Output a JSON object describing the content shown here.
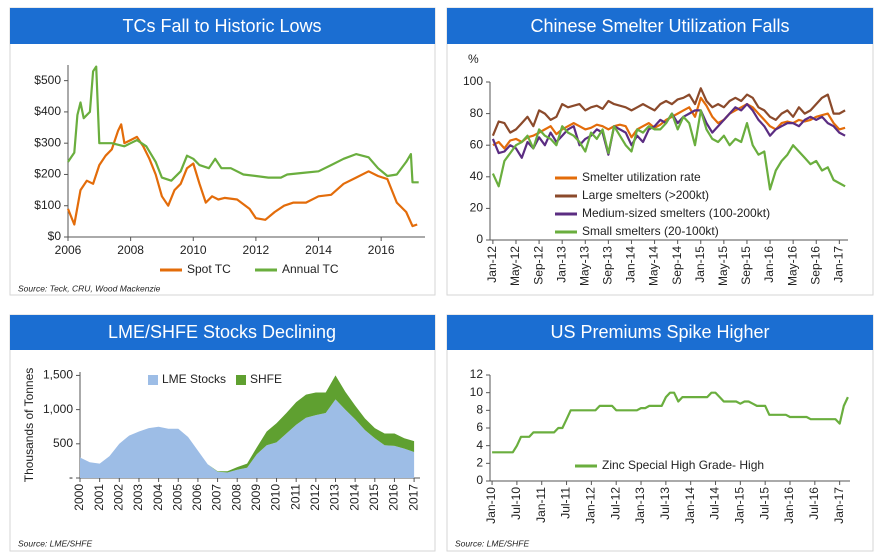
{
  "chart_data": [
    {
      "type": "line",
      "title": "TCs Fall to Historic Lows",
      "source": "Source: Teck, CRU, Wood Mackenzie",
      "xlim": [
        2006,
        2017.4
      ],
      "xticks": [
        2006,
        2008,
        2010,
        2012,
        2014,
        2016
      ],
      "ylim": [
        0,
        550
      ],
      "yticks": [
        {
          "value": 0,
          "label": "$0"
        },
        {
          "value": 100,
          "label": "$100"
        },
        {
          "value": 200,
          "label": "$200"
        },
        {
          "value": 300,
          "label": "$300"
        },
        {
          "value": 400,
          "label": "$400"
        },
        {
          "value": 500,
          "label": "$500"
        }
      ],
      "series": [
        {
          "name": "Spot TC",
          "color": "#e36c0a",
          "x": [
            2006.0,
            2006.2,
            2006.4,
            2006.6,
            2006.8,
            2007.0,
            2007.2,
            2007.4,
            2007.6,
            2007.7,
            2007.8,
            2008.0,
            2008.2,
            2008.4,
            2008.6,
            2008.8,
            2009.0,
            2009.2,
            2009.4,
            2009.6,
            2009.8,
            2010.0,
            2010.2,
            2010.4,
            2010.6,
            2010.8,
            2011.0,
            2011.4,
            2011.8,
            2012.0,
            2012.3,
            2012.6,
            2012.9,
            2013.2,
            2013.6,
            2014.0,
            2014.4,
            2014.8,
            2015.2,
            2015.6,
            2015.9,
            2016.2,
            2016.5,
            2016.8,
            2017.0,
            2017.15
          ],
          "values": [
            90,
            40,
            150,
            180,
            170,
            230,
            260,
            280,
            340,
            360,
            300,
            310,
            320,
            290,
            250,
            200,
            130,
            100,
            150,
            170,
            220,
            235,
            170,
            110,
            130,
            120,
            125,
            120,
            90,
            60,
            55,
            80,
            100,
            110,
            110,
            130,
            135,
            170,
            190,
            210,
            195,
            185,
            110,
            80,
            35,
            40
          ]
        },
        {
          "name": "Annual TC",
          "color": "#6aae3e",
          "x": [
            2006.0,
            2006.2,
            2006.3,
            2006.4,
            2006.5,
            2006.7,
            2006.8,
            2006.9,
            2007.0,
            2007.4,
            2007.8,
            2008.0,
            2008.2,
            2008.5,
            2008.8,
            2009.0,
            2009.3,
            2009.6,
            2009.8,
            2010.0,
            2010.2,
            2010.5,
            2010.7,
            2010.9,
            2011.2,
            2011.6,
            2012.0,
            2012.4,
            2012.8,
            2013.0,
            2013.5,
            2014.0,
            2014.4,
            2014.8,
            2015.2,
            2015.6,
            2015.9,
            2016.2,
            2016.5,
            2016.8,
            2016.95,
            2017.0,
            2017.2
          ],
          "values": [
            240,
            270,
            390,
            430,
            380,
            400,
            530,
            545,
            300,
            300,
            290,
            300,
            310,
            290,
            240,
            190,
            180,
            210,
            260,
            250,
            230,
            220,
            250,
            220,
            220,
            200,
            195,
            190,
            190,
            200,
            205,
            210,
            230,
            250,
            265,
            255,
            220,
            195,
            200,
            240,
            265,
            175,
            175
          ]
        }
      ]
    },
    {
      "type": "line",
      "title": "Chinese Smelter Utilization Falls",
      "y_label": "%",
      "categories": [
        "Jan-12",
        null,
        null,
        null,
        "May-12",
        null,
        null,
        null,
        "Sep-12",
        null,
        null,
        null,
        "Jan-13",
        null,
        null,
        null,
        "May-13",
        null,
        null,
        null,
        "Sep-13",
        null,
        null,
        null,
        "Jan-14",
        null,
        null,
        null,
        "May-14",
        null,
        null,
        null,
        "Sep-14",
        null,
        null,
        null,
        "Jan-15",
        null,
        null,
        null,
        "May-15",
        null,
        null,
        null,
        "Sep-15",
        null,
        null,
        null,
        "Jan-16",
        null,
        null,
        null,
        "May-16",
        null,
        null,
        null,
        "Sep-16",
        null,
        null,
        null,
        "Jan-17",
        null
      ],
      "ylim": [
        0,
        100
      ],
      "yticks": [
        0,
        20,
        40,
        60,
        80,
        100
      ],
      "series": [
        {
          "name": "Smelter utilization rate",
          "color": "#e36c0a",
          "values": [
            60,
            62,
            58,
            63,
            64,
            62,
            65,
            66,
            68,
            70,
            72,
            67,
            70,
            72,
            74,
            72,
            70,
            71,
            73,
            72,
            70,
            72,
            73,
            72,
            65,
            70,
            72,
            74,
            71,
            73,
            76,
            78,
            80,
            82,
            84,
            78,
            90,
            85,
            78,
            74,
            76,
            80,
            82,
            84,
            86,
            84,
            80,
            76,
            72,
            70,
            74,
            75,
            74,
            76,
            75,
            76,
            78,
            79,
            80,
            74,
            70,
            71
          ]
        },
        {
          "name": "Large smelters (>200kt)",
          "color": "#8b4a2b",
          "values": [
            66,
            75,
            74,
            68,
            70,
            74,
            78,
            72,
            82,
            80,
            76,
            78,
            86,
            84,
            85,
            86,
            82,
            84,
            85,
            83,
            88,
            86,
            85,
            84,
            82,
            84,
            86,
            84,
            82,
            86,
            88,
            86,
            89,
            90,
            92,
            86,
            96,
            88,
            84,
            86,
            84,
            88,
            90,
            88,
            92,
            90,
            84,
            82,
            78,
            76,
            80,
            82,
            78,
            84,
            80,
            82,
            86,
            90,
            92,
            80,
            80,
            82
          ]
        },
        {
          "name": "Medium-sized smelters (100-200kt)",
          "color": "#5b2d82",
          "values": [
            64,
            55,
            56,
            60,
            58,
            52,
            62,
            58,
            65,
            60,
            68,
            62,
            66,
            70,
            72,
            60,
            64,
            66,
            70,
            68,
            54,
            72,
            70,
            68,
            60,
            66,
            62,
            70,
            72,
            76,
            74,
            80,
            74,
            78,
            80,
            82,
            82,
            74,
            68,
            72,
            76,
            80,
            84,
            82,
            86,
            82,
            76,
            72,
            66,
            70,
            72,
            74,
            74,
            72,
            76,
            78,
            76,
            78,
            74,
            72,
            68,
            66
          ]
        },
        {
          "name": "Small smelters (20-100kt)",
          "color": "#6aae3e",
          "values": [
            42,
            34,
            50,
            55,
            60,
            62,
            66,
            58,
            70,
            66,
            64,
            60,
            72,
            68,
            66,
            62,
            56,
            68,
            64,
            70,
            55,
            72,
            66,
            60,
            56,
            70,
            68,
            72,
            70,
            70,
            74,
            80,
            70,
            78,
            74,
            60,
            82,
            70,
            64,
            62,
            66,
            60,
            64,
            62,
            74,
            60,
            54,
            56,
            32,
            44,
            50,
            54,
            60,
            56,
            52,
            48,
            50,
            44,
            46,
            38,
            36,
            34
          ]
        }
      ]
    },
    {
      "type": "area",
      "title": "LME/SHFE Stocks Declining",
      "source": "Source: LME/SHFE",
      "y_label": "Thousands of Tonnes",
      "x": [
        2000,
        2000.5,
        2001,
        2001.5,
        2002,
        2002.5,
        2003,
        2003.5,
        2004,
        2004.5,
        2005,
        2005.5,
        2006,
        2006.5,
        2007,
        2007.5,
        2008,
        2008.5,
        2009,
        2009.5,
        2010,
        2010.5,
        2011,
        2011.5,
        2012,
        2012.5,
        2013,
        2013.5,
        2014,
        2014.5,
        2015,
        2015.5,
        2016,
        2016.5,
        2017
      ],
      "xlim": [
        2000,
        2017.3
      ],
      "xticks": [
        2000,
        2001,
        2002,
        2003,
        2004,
        2005,
        2006,
        2007,
        2008,
        2009,
        2010,
        2011,
        2012,
        2013,
        2014,
        2015,
        2016,
        2017
      ],
      "ylim": [
        0,
        1550
      ],
      "yticks": [
        {
          "value": 0,
          "label": "-"
        },
        500,
        {
          "value": 1000,
          "label": "1,000"
        },
        {
          "value": 1500,
          "label": "1,500"
        }
      ],
      "series": [
        {
          "name": "LME Stocks",
          "color": "#9dbde6",
          "values": [
            300,
            230,
            210,
            320,
            500,
            620,
            680,
            730,
            750,
            720,
            720,
            600,
            400,
            200,
            90,
            80,
            120,
            150,
            350,
            480,
            520,
            650,
            780,
            880,
            920,
            950,
            1150,
            1000,
            860,
            700,
            580,
            480,
            470,
            430,
            380
          ]
        },
        {
          "name": "SHFE",
          "color": "#5fa030",
          "values": [
            0,
            0,
            0,
            0,
            0,
            0,
            0,
            0,
            0,
            0,
            0,
            0,
            0,
            0,
            10,
            20,
            40,
            60,
            100,
            200,
            280,
            300,
            330,
            340,
            330,
            300,
            350,
            260,
            200,
            170,
            150,
            170,
            180,
            150,
            160
          ]
        }
      ]
    },
    {
      "type": "line",
      "title": "US Premiums Spike Higher",
      "source": "Source: LME/SHFE",
      "categories": [
        "Jan-10",
        null,
        null,
        null,
        null,
        null,
        "Jul-10",
        null,
        null,
        null,
        null,
        null,
        "Jan-11",
        null,
        null,
        null,
        null,
        null,
        "Jul-11",
        null,
        null,
        null,
        null,
        null,
        "Jan-12",
        null,
        null,
        null,
        null,
        null,
        "Jul-12",
        null,
        null,
        null,
        null,
        null,
        "Jan-13",
        null,
        null,
        null,
        null,
        null,
        "Jul-13",
        null,
        null,
        null,
        null,
        null,
        "Jan-14",
        null,
        null,
        null,
        null,
        null,
        "Jul-14",
        null,
        null,
        null,
        null,
        null,
        "Jan-15",
        null,
        null,
        null,
        null,
        null,
        "Jul-15",
        null,
        null,
        null,
        null,
        null,
        "Jan-16",
        null,
        null,
        null,
        null,
        null,
        "Jul-16",
        null,
        null,
        null,
        null,
        null,
        "Jan-17",
        null,
        null
      ],
      "ylim": [
        0,
        12
      ],
      "yticks": [
        0,
        2,
        4,
        6,
        8,
        10,
        12
      ],
      "series": [
        {
          "name": "Zinc Special High Grade- High",
          "color": "#6aae3e",
          "values": [
            3.25,
            3.25,
            3.25,
            3.25,
            3.25,
            3.25,
            4,
            5,
            5,
            5,
            5.5,
            5.5,
            5.5,
            5.5,
            5.5,
            5.5,
            6,
            6,
            7,
            8,
            8,
            8,
            8,
            8,
            8,
            8,
            8.5,
            8.5,
            8.5,
            8.5,
            8,
            8,
            8,
            8,
            8,
            8,
            8.25,
            8.25,
            8.5,
            8.5,
            8.5,
            8.5,
            9.5,
            10,
            10,
            9,
            9.5,
            9.5,
            9.5,
            9.5,
            9.5,
            9.5,
            9.5,
            10,
            10,
            9.5,
            9,
            9,
            9,
            9,
            8.75,
            9,
            9,
            8.75,
            8.5,
            8.5,
            8.5,
            7.5,
            7.5,
            7.5,
            7.5,
            7.5,
            7.25,
            7.25,
            7.25,
            7.25,
            7.25,
            7,
            7,
            7,
            7,
            7,
            7,
            7,
            6.5,
            8.5,
            9.5
          ]
        }
      ]
    }
  ]
}
